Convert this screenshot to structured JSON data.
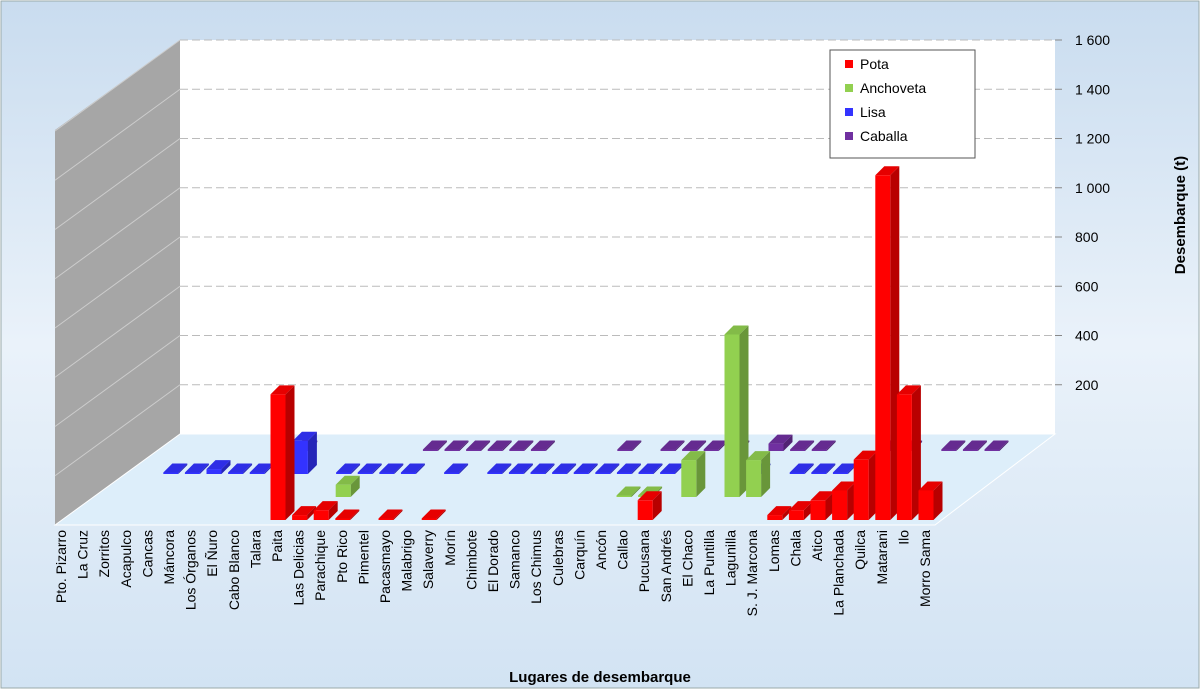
{
  "chart_data": {
    "type": "bar3d",
    "xlabel": "Lugares de desembarque",
    "ylabel": "Desembarque (t)",
    "categories": [
      "Pto. Pizarro",
      "La Cruz",
      "Zorritos",
      "Acapulco",
      "Cancas",
      "Máncora",
      "Los Órganos",
      "El Ñuro",
      "Cabo Blanco",
      "Talara",
      "Paita",
      "Las Delicias",
      "Parachique",
      "Pto Rico",
      "Pimentel",
      "Pacasmayo",
      "Malabrigo",
      "Salaverry",
      "Morín",
      "Chimbote",
      "El Dorado",
      "Samanco",
      "Los Chimus",
      "Culebras",
      "Carquín",
      "Ancón",
      "Callao",
      "Pucusana",
      "San Andrés",
      "El Chaco",
      "La Puntilla",
      "Lagunilla",
      "S. J. Marcona",
      "Lomas",
      "Chala",
      "Atico",
      "La Planchada",
      "Quilca",
      "Matarani",
      "Ilo",
      "Morro Sama"
    ],
    "series": [
      {
        "name": "Pota",
        "color": "#ff0000",
        "values": [
          0,
          0,
          0,
          0,
          0,
          0,
          0,
          0,
          0,
          0,
          510,
          20,
          40,
          5,
          0,
          5,
          0,
          5,
          0,
          0,
          0,
          0,
          0,
          0,
          0,
          0,
          0,
          80,
          0,
          0,
          0,
          0,
          0,
          20,
          40,
          80,
          120,
          245,
          1400,
          510,
          120
        ]
      },
      {
        "name": "Anchoveta",
        "color": "#92d050",
        "values": [
          0,
          0,
          0,
          0,
          0,
          0,
          0,
          0,
          0,
          0,
          0,
          0,
          50,
          0,
          0,
          0,
          0,
          0,
          0,
          0,
          0,
          0,
          0,
          0,
          0,
          5,
          5,
          0,
          150,
          0,
          660,
          150,
          0,
          0,
          0,
          0,
          0,
          0,
          0,
          0,
          0
        ]
      },
      {
        "name": "Lisa",
        "color": "#3333ff",
        "values": [
          0,
          0,
          0,
          5,
          5,
          20,
          5,
          5,
          50,
          135,
          0,
          5,
          5,
          5,
          5,
          0,
          5,
          0,
          5,
          5,
          5,
          5,
          5,
          5,
          5,
          5,
          5,
          0,
          0,
          5,
          5,
          0,
          5,
          5,
          5,
          0,
          0,
          0,
          0,
          0,
          0
        ]
      },
      {
        "name": "Caballa",
        "color": "#7030a0",
        "values": [
          0,
          0,
          0,
          0,
          0,
          0,
          0,
          0,
          5,
          0,
          0,
          0,
          0,
          0,
          5,
          5,
          5,
          5,
          5,
          5,
          0,
          0,
          0,
          5,
          0,
          5,
          5,
          5,
          5,
          0,
          30,
          5,
          5,
          0,
          0,
          5,
          5,
          0,
          5,
          5,
          5
        ]
      }
    ],
    "ylim": [
      0,
      1600
    ],
    "yticks": [
      {
        "value": 200,
        "label": "200"
      },
      {
        "value": 400,
        "label": "400"
      },
      {
        "value": 600,
        "label": "600"
      },
      {
        "value": 800,
        "label": "800"
      },
      {
        "value": 1000,
        "label": "1 000"
      },
      {
        "value": 1200,
        "label": "1 200"
      },
      {
        "value": 1400,
        "label": "1 400"
      },
      {
        "value": 1600,
        "label": "1 600"
      }
    ],
    "grid": true,
    "legend": "upper right"
  }
}
